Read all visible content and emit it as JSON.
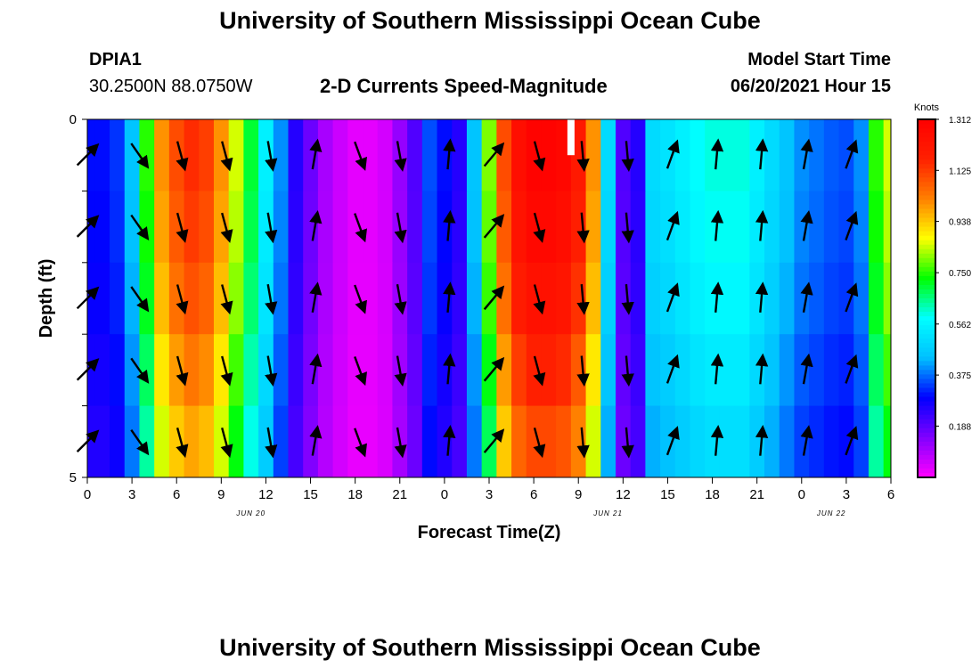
{
  "header": {
    "title": "University of Southern Mississippi Ocean Cube",
    "station_id": "DPIA1",
    "station_coords": "30.2500N  88.0750W",
    "chart_title": "2-D Currents Speed-Magnitude",
    "model_start_label": "Model Start Time",
    "model_start_value": "06/20/2021 Hour 15"
  },
  "footer": {
    "title": "University of Southern Mississippi Ocean Cube"
  },
  "chart_data": {
    "type": "heatmap",
    "title": "2-D Currents Speed-Magnitude",
    "xlabel": "Forecast Time(Z)",
    "ylabel": "Depth (ft)",
    "x_tick_labels": [
      "0",
      "3",
      "6",
      "9",
      "12",
      "15",
      "18",
      "21",
      "0",
      "3",
      "6",
      "9",
      "12",
      "15",
      "18",
      "21",
      "0",
      "3",
      "6"
    ],
    "date_labels": [
      {
        "label": "JUN 20",
        "x_index": 11
      },
      {
        "label": "JUN 21",
        "x_index": 35
      },
      {
        "label": "JUN 22",
        "x_index": 50
      }
    ],
    "y_tick_labels": [
      {
        "label": "0",
        "depth": 0
      },
      {
        "label": "5",
        "depth": 5
      }
    ],
    "y_minor_ticks": [
      1,
      2,
      3,
      4
    ],
    "ylim": [
      0,
      5
    ],
    "x_range_hours": [
      0,
      54
    ],
    "depth_levels": 5,
    "colorbar": {
      "title": "Knots",
      "tick_labels": [
        "1.312",
        "1.125",
        "0.938",
        "0.750",
        "0.562",
        "0.375",
        "0.188"
      ],
      "tick_values": [
        1.312,
        1.125,
        0.938,
        0.75,
        0.562,
        0.375,
        0.188
      ],
      "min": 0.0,
      "max": 1.312,
      "colors": [
        "#ff00ff",
        "#8000ff",
        "#0000ff",
        "#00c0ff",
        "#00ffff",
        "#00ff00",
        "#ffff00",
        "#ff8000",
        "#ff2000",
        "#ff0000"
      ]
    },
    "speed_by_hour": [
      0.3,
      0.3,
      0.33,
      0.45,
      0.75,
      1.0,
      1.1,
      1.15,
      1.12,
      1.0,
      0.85,
      0.7,
      0.55,
      0.4,
      0.25,
      0.17,
      0.1,
      0.06,
      0.03,
      0.03,
      0.05,
      0.12,
      0.2,
      0.35,
      0.3,
      0.25,
      0.45,
      0.8,
      1.1,
      1.25,
      1.3,
      1.3,
      1.28,
      1.2,
      1.0,
      0.5,
      0.2,
      0.25,
      0.5,
      0.52,
      0.55,
      0.58,
      0.6,
      0.6,
      0.6,
      0.55,
      0.5,
      0.45,
      0.4,
      0.38,
      0.36,
      0.35,
      0.4,
      0.75,
      0.85
    ],
    "depth_speed_factor": [
      1.0,
      0.98,
      0.95,
      0.9,
      0.85
    ],
    "arrow_columns": [
      {
        "hour": 0,
        "angle_deg": 45
      },
      {
        "hour": 3.5,
        "angle_deg": 145
      },
      {
        "hour": 6.3,
        "angle_deg": 165
      },
      {
        "hour": 9.3,
        "angle_deg": 165
      },
      {
        "hour": 12.3,
        "angle_deg": 170
      },
      {
        "hour": 15.3,
        "angle_deg": 10
      },
      {
        "hour": 18.3,
        "angle_deg": 160
      },
      {
        "hour": 21,
        "angle_deg": 170
      },
      {
        "hour": 24.3,
        "angle_deg": 5
      },
      {
        "hour": 27.3,
        "angle_deg": 40
      },
      {
        "hour": 30.3,
        "angle_deg": 165
      },
      {
        "hour": 33.3,
        "angle_deg": 175
      },
      {
        "hour": 36.3,
        "angle_deg": 175
      },
      {
        "hour": 39.3,
        "angle_deg": 20
      },
      {
        "hour": 42.3,
        "angle_deg": 5
      },
      {
        "hour": 45.3,
        "angle_deg": 5
      },
      {
        "hour": 48.3,
        "angle_deg": 10
      },
      {
        "hour": 51.3,
        "angle_deg": 20
      }
    ],
    "missing_data": [
      {
        "hour": 32.5,
        "depth_from": 0,
        "depth_to": 0.5
      }
    ]
  }
}
